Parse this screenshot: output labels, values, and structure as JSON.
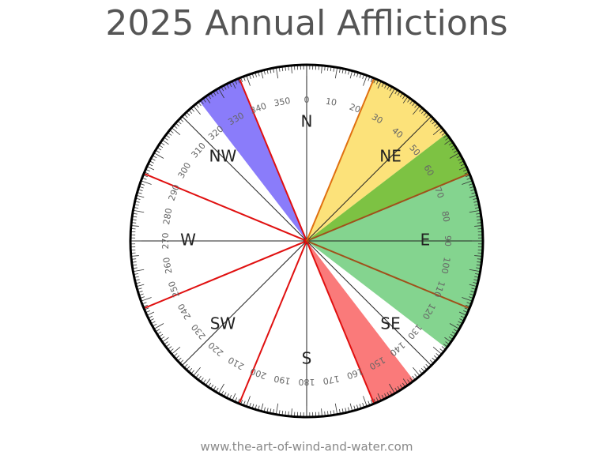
{
  "header": {
    "title": "2025 Annual Afflictions"
  },
  "directions": [
    "N",
    "NE",
    "E",
    "SE",
    "S",
    "SW",
    "W",
    "NW"
  ],
  "degrees": [
    0,
    10,
    20,
    30,
    40,
    50,
    60,
    70,
    80,
    90,
    100,
    110,
    120,
    130,
    140,
    150,
    160,
    170,
    180,
    190,
    200,
    210,
    220,
    230,
    240,
    250,
    260,
    270,
    280,
    290,
    300,
    310,
    320,
    330,
    340,
    350
  ],
  "footer": "www.the-art-of-wind-and-water.com"
}
